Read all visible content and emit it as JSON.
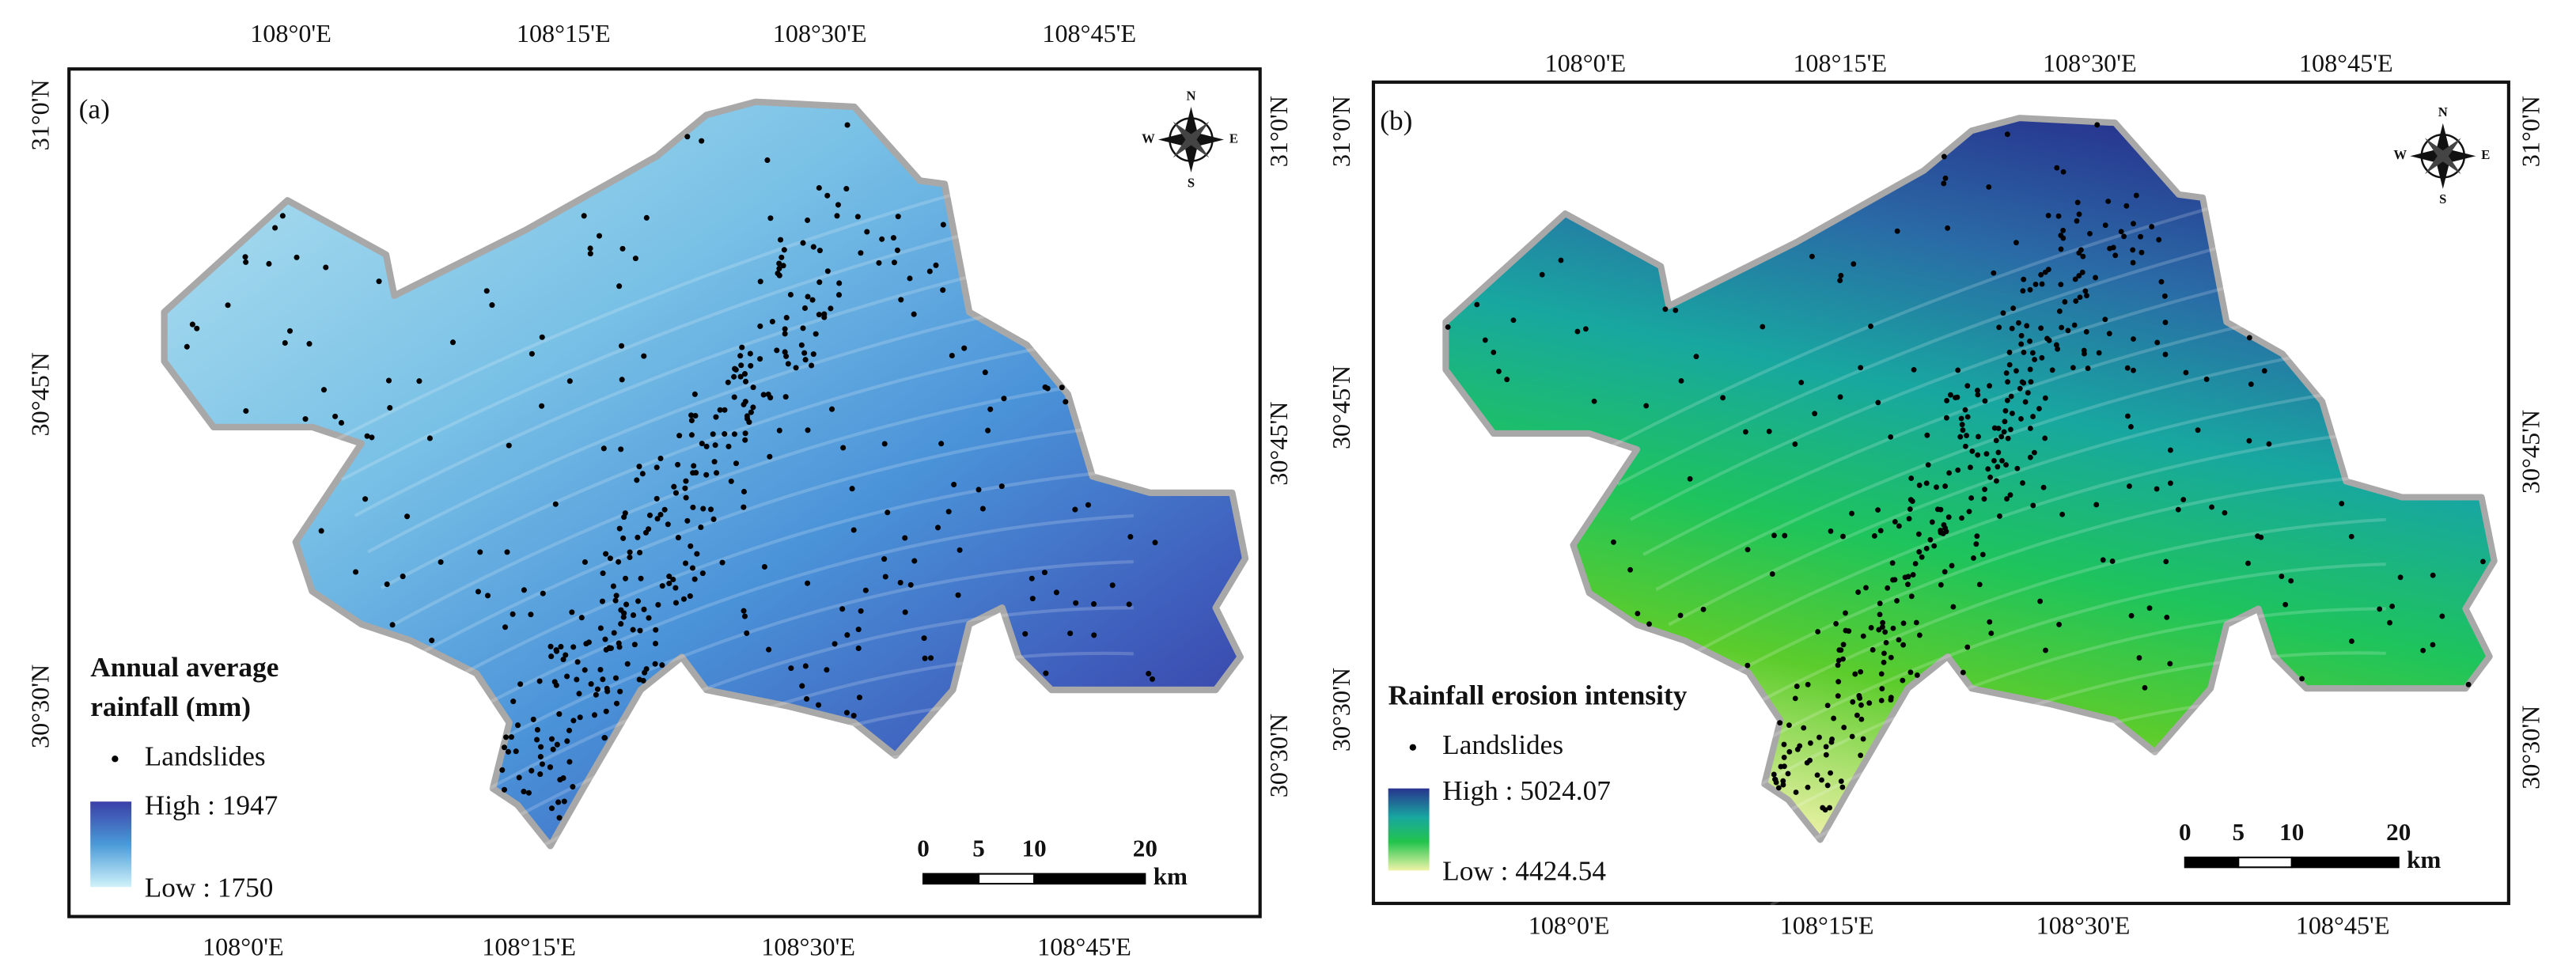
{
  "panels": [
    {
      "label": "(a)",
      "top_ticks": [
        "108°0'E",
        "108°15'E",
        "108°30'E",
        "108°45'E"
      ],
      "bottom_ticks": [
        "108°0'E",
        "108°15'E",
        "108°30'E",
        "108°45'E"
      ],
      "left_ticks": [
        "31°0'N",
        "30°45'N",
        "30°30'N"
      ],
      "right_ticks": [
        "31°0'N",
        "30°45'N",
        "30°30'N"
      ],
      "compass": {
        "n": "N",
        "e": "E",
        "s": "S",
        "w": "W"
      },
      "legend": {
        "title_lines": [
          "Annual average",
          "rainfall (mm)"
        ],
        "points": "Landslides",
        "high": "High : 1947",
        "low": "Low : 1750"
      },
      "scale_bar": {
        "ticks": [
          0,
          5,
          10,
          20
        ],
        "unit": "km"
      }
    },
    {
      "label": "(b)",
      "top_ticks": [
        "108°0'E",
        "108°15'E",
        "108°30'E",
        "108°45'E"
      ],
      "bottom_ticks": [
        "108°0'E",
        "108°15'E",
        "108°30'E",
        "108°45'E"
      ],
      "left_ticks": [
        "31°0'N",
        "30°45'N",
        "30°30'N"
      ],
      "right_ticks": [
        "31°0'N",
        "30°45'N",
        "30°30'N"
      ],
      "compass": {
        "n": "N",
        "e": "E",
        "s": "S",
        "w": "W"
      },
      "legend": {
        "title_lines": [
          "Rainfall erosion intensity"
        ],
        "points": "Landslides",
        "high": "High : 5024.07",
        "low": "Low : 4424.54"
      },
      "scale_bar": {
        "ticks": [
          0,
          5,
          10,
          20
        ],
        "unit": "km"
      }
    }
  ]
}
